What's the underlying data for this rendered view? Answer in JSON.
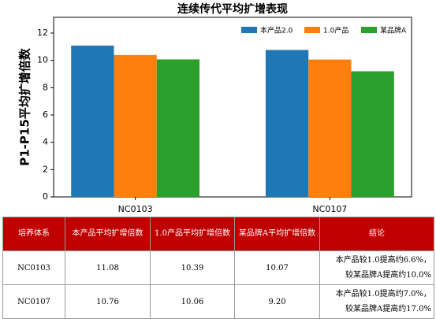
{
  "chart_data": {
    "type": "bar",
    "title": "连续传代平均扩增表现",
    "ylabel": "P1-P15平均扩增倍数",
    "categories": [
      "NC0103",
      "NC0107"
    ],
    "series": [
      {
        "name": "本产品2.0",
        "color": "#1f77b4",
        "values": [
          11.08,
          10.76
        ]
      },
      {
        "name": "1.0产品",
        "color": "#ff7f0e",
        "values": [
          10.39,
          10.06
        ]
      },
      {
        "name": "某品牌A",
        "color": "#2ca02c",
        "values": [
          10.07,
          9.2
        ]
      }
    ],
    "ylim": [
      0,
      13.15
    ],
    "yticks": [
      0,
      2,
      4,
      6,
      8,
      10,
      12
    ],
    "legend": "upper right"
  },
  "table": {
    "header": [
      "培养体系",
      "本产品平均扩增倍数",
      "1.0产品平均扩增倍数",
      "某品牌A平均扩增倍数",
      "结论"
    ],
    "rows": [
      [
        "NC0103",
        "11.08",
        "10.39",
        "10.07",
        [
          "本产品较1.0提高约6.6%，",
          "较某品牌A提高约10.0%"
        ]
      ],
      [
        "NC0107",
        "10.76",
        "10.06",
        "9.20",
        [
          "本产品较1.0提高约7.0%，",
          "较某品牌A提高约17.0%"
        ]
      ]
    ]
  }
}
